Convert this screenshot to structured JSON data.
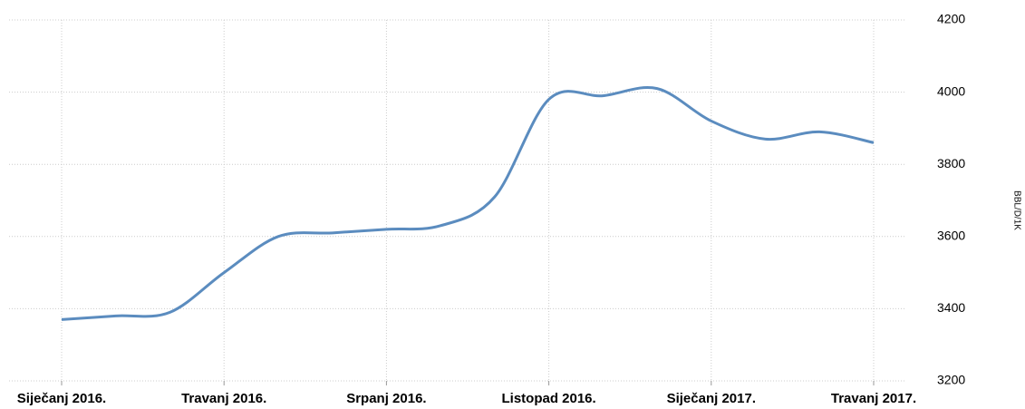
{
  "chart_data": {
    "type": "line",
    "y_label": "BBL/D/1K",
    "categories": [
      "Siječanj 2016.",
      null,
      null,
      "Travanj 2016.",
      null,
      null,
      "Srpanj 2016.",
      null,
      null,
      "Listopad 2016.",
      null,
      null,
      "Siječanj 2017.",
      null,
      null,
      "Travanj 2017."
    ],
    "series": [
      {
        "color": "#5b8cbf",
        "values": [
          3370,
          3380,
          3390,
          3500,
          3600,
          3610,
          3620,
          3630,
          3710,
          3980,
          3990,
          4010,
          3920,
          3870,
          3890,
          3860
        ]
      }
    ],
    "ylim": [
      3200,
      4200
    ],
    "yticks": [
      3200,
      3400,
      3600,
      3800,
      4000,
      4200
    ],
    "grid": true
  }
}
